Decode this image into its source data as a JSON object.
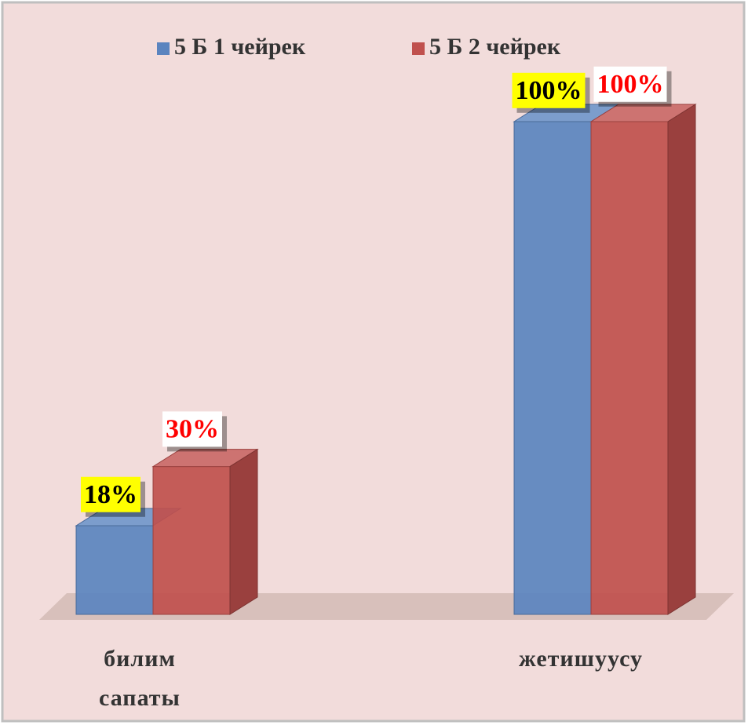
{
  "chart_data": {
    "type": "bar3d",
    "categories": [
      "билим сапаты",
      "жетишуусу"
    ],
    "series": [
      {
        "name": "5 Б 1 чейрек",
        "color": "#5b84bf",
        "values": [
          18,
          100
        ],
        "value_labels": [
          "18%",
          "100%"
        ],
        "label_background": "#ffff00",
        "label_color": "#000000"
      },
      {
        "name": "5 Б 2 чейрек",
        "color": "#c0504d",
        "values": [
          30,
          100
        ],
        "value_labels": [
          "30%",
          "100%"
        ],
        "label_background": "#ffffff",
        "label_color": "#ff0000"
      }
    ],
    "ylim": [
      0,
      100
    ],
    "legend": "top"
  }
}
